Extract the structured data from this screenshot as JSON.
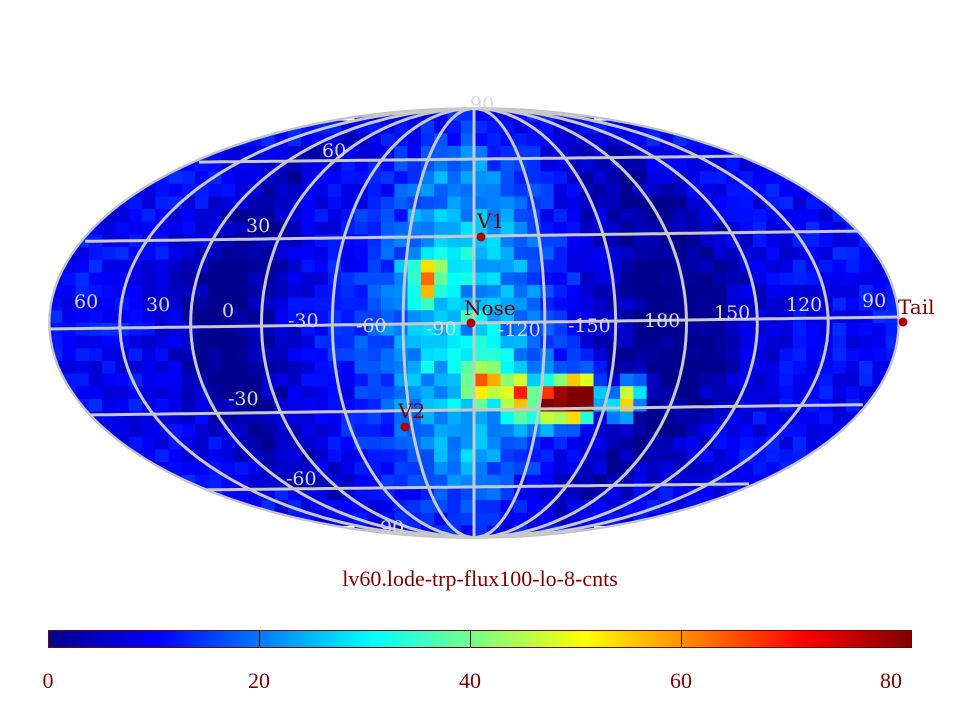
{
  "title": "lv60.lode-trp-flux100-lo-8-cnts",
  "colorbar": {
    "min": 0,
    "max": 82,
    "tick_labels": [
      "0",
      "20",
      "40",
      "60",
      "80"
    ],
    "colors": [
      "#00008f",
      "#0000ff",
      "#007fff",
      "#00ffff",
      "#7fff7f",
      "#ffff00",
      "#ff7f00",
      "#ff0000",
      "#800000"
    ]
  },
  "projection": "Mollweide (all-sky)",
  "grid": {
    "color": "#c8c8c8",
    "latitude_labels": [
      "90",
      "60",
      "30",
      "-30",
      "-60",
      "90"
    ],
    "longitude_labels": [
      "60",
      "30",
      "0",
      "-30",
      "-60",
      "-90",
      "-120",
      "-150",
      "180",
      "150",
      "120",
      "90"
    ]
  },
  "markers": [
    {
      "name": "V1",
      "color": "#aa0000"
    },
    {
      "name": "Nose",
      "color": "#aa0000"
    },
    {
      "name": "V2",
      "color": "#aa0000"
    },
    {
      "name": "Tail",
      "color": "#aa0000"
    }
  ],
  "chart_data": {
    "type": "heatmap",
    "title": "lv60.lode-trp-flux100-lo-8-cnts",
    "value_range": [
      0,
      82
    ],
    "colorbar_ticks": [
      0,
      20,
      40,
      60,
      80
    ],
    "description_values": {
      "background_level": 10,
      "dark_lobes_level": 3,
      "central_band_level": 30,
      "hotspots": [
        {
          "lon": -125,
          "lat": -27,
          "value": 78
        },
        {
          "lon": -135,
          "lat": -25,
          "value": 80
        },
        {
          "lon": -140,
          "lat": -27,
          "value": 72
        },
        {
          "lon": -160,
          "lat": -27,
          "value": 68
        },
        {
          "lon": -110,
          "lat": -25,
          "value": 60
        },
        {
          "lon": -95,
          "lat": -20,
          "value": 55
        },
        {
          "lon": -70,
          "lat": 15,
          "value": 48
        }
      ]
    }
  }
}
